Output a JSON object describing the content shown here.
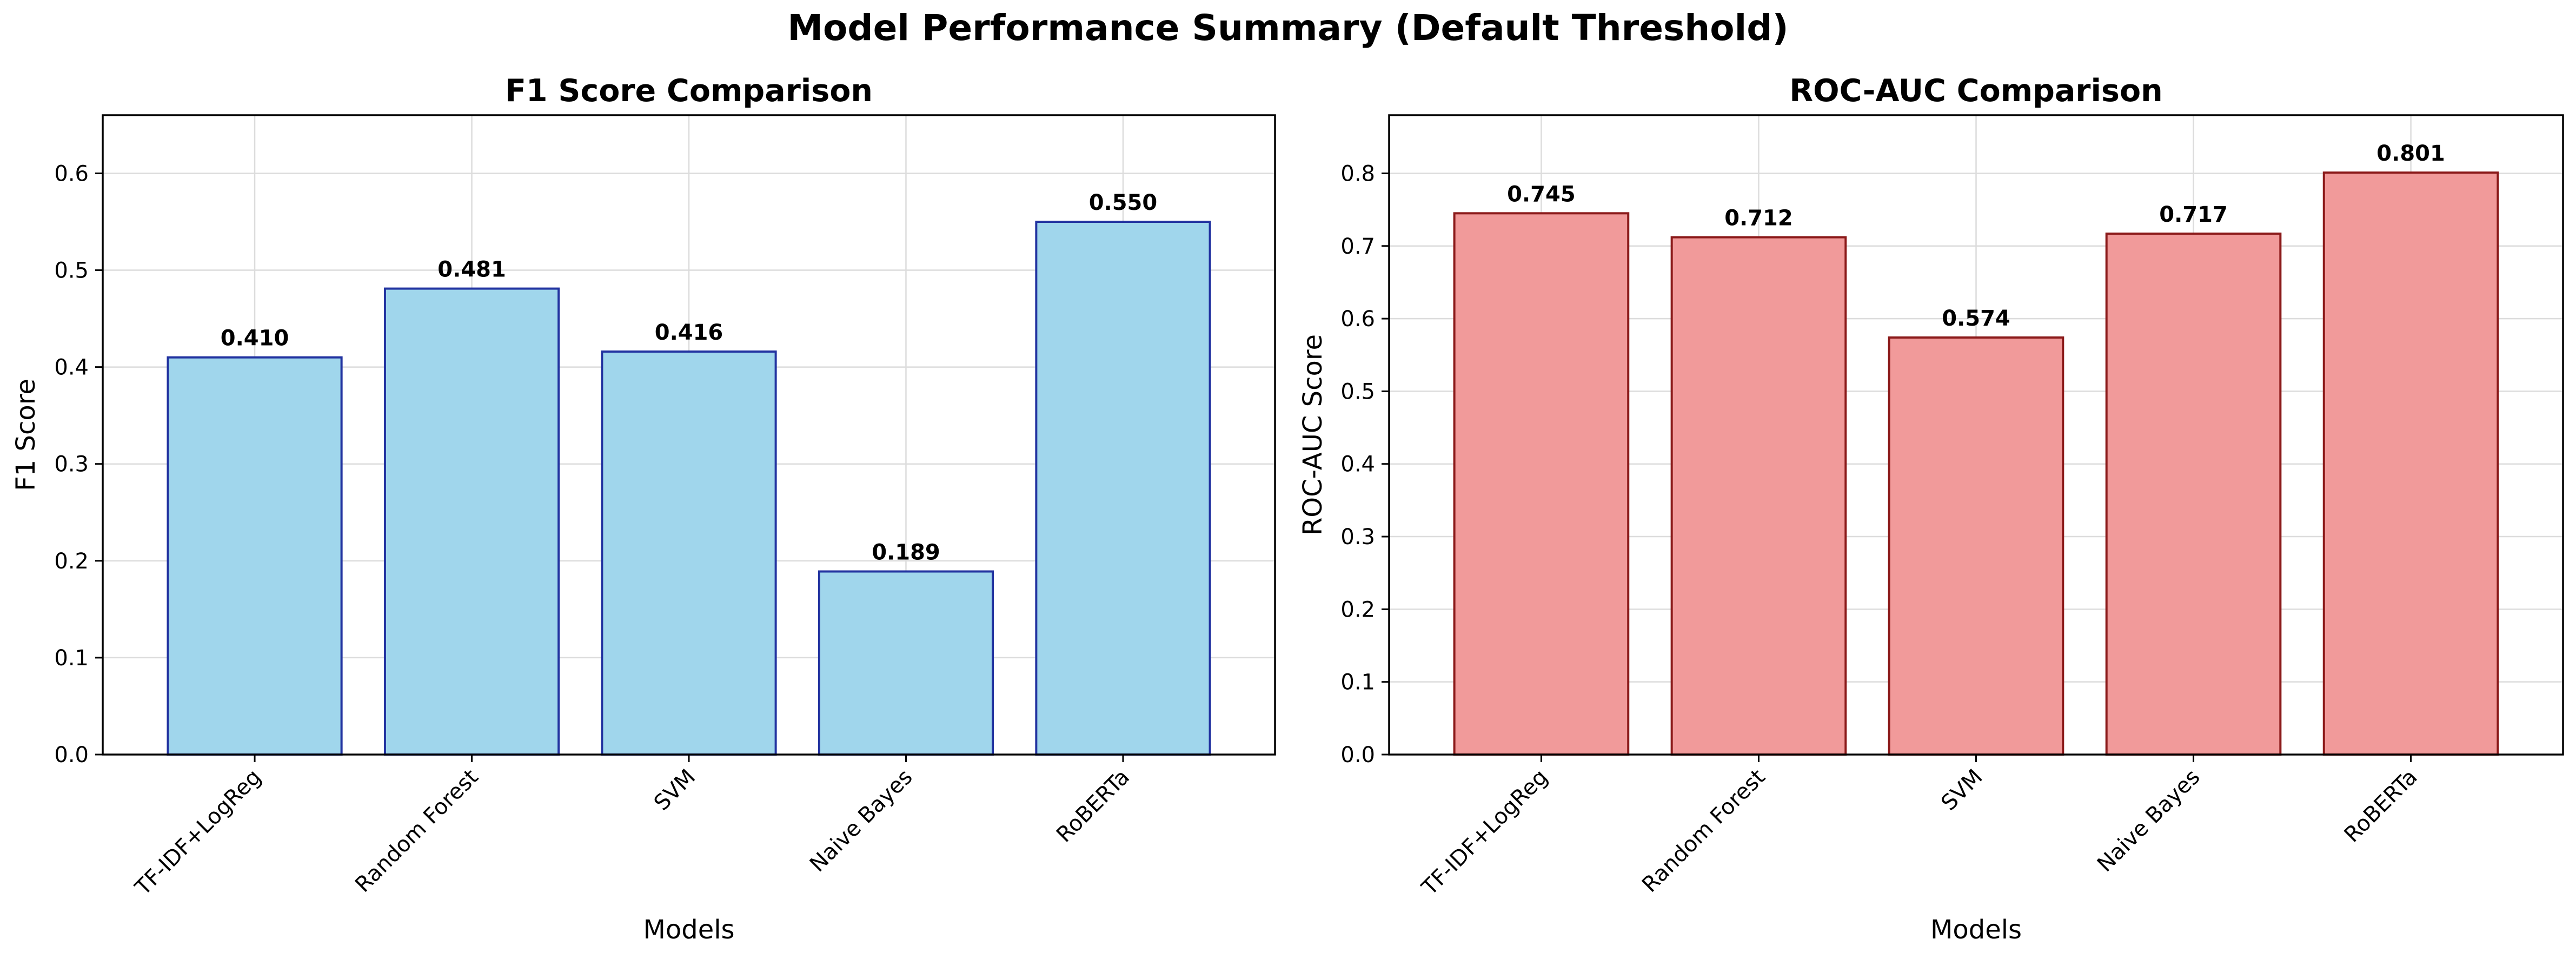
{
  "figure": {
    "suptitle": "Model Performance Summary (Default Threshold)"
  },
  "chart_data": [
    {
      "type": "bar",
      "title": "F1 Score Comparison",
      "xlabel": "Models",
      "ylabel": "F1 Score",
      "categories": [
        "TF-IDF+LogReg",
        "Random Forest",
        "SVM",
        "Naive Bayes",
        "RoBERTa"
      ],
      "values": [
        0.41,
        0.481,
        0.416,
        0.189,
        0.55
      ],
      "value_labels": [
        "0.410",
        "0.481",
        "0.416",
        "0.189",
        "0.550"
      ],
      "ylim": [
        0,
        0.66
      ],
      "yticks": [
        "0.0",
        "0.1",
        "0.2",
        "0.3",
        "0.4",
        "0.5",
        "0.6"
      ],
      "grid": true,
      "bar_color": "#a0d6ec",
      "edge_color": "#2233a0"
    },
    {
      "type": "bar",
      "title": "ROC-AUC Comparison",
      "xlabel": "Models",
      "ylabel": "ROC-AUC Score",
      "categories": [
        "TF-IDF+LogReg",
        "Random Forest",
        "SVM",
        "Naive Bayes",
        "RoBERTa"
      ],
      "values": [
        0.745,
        0.712,
        0.574,
        0.717,
        0.801
      ],
      "value_labels": [
        "0.745",
        "0.712",
        "0.574",
        "0.717",
        "0.801"
      ],
      "ylim": [
        0,
        0.88
      ],
      "yticks": [
        "0.0",
        "0.1",
        "0.2",
        "0.3",
        "0.4",
        "0.5",
        "0.6",
        "0.7",
        "0.8"
      ],
      "grid": true,
      "bar_color": "#f19a9a",
      "edge_color": "#8b1a1a"
    }
  ]
}
